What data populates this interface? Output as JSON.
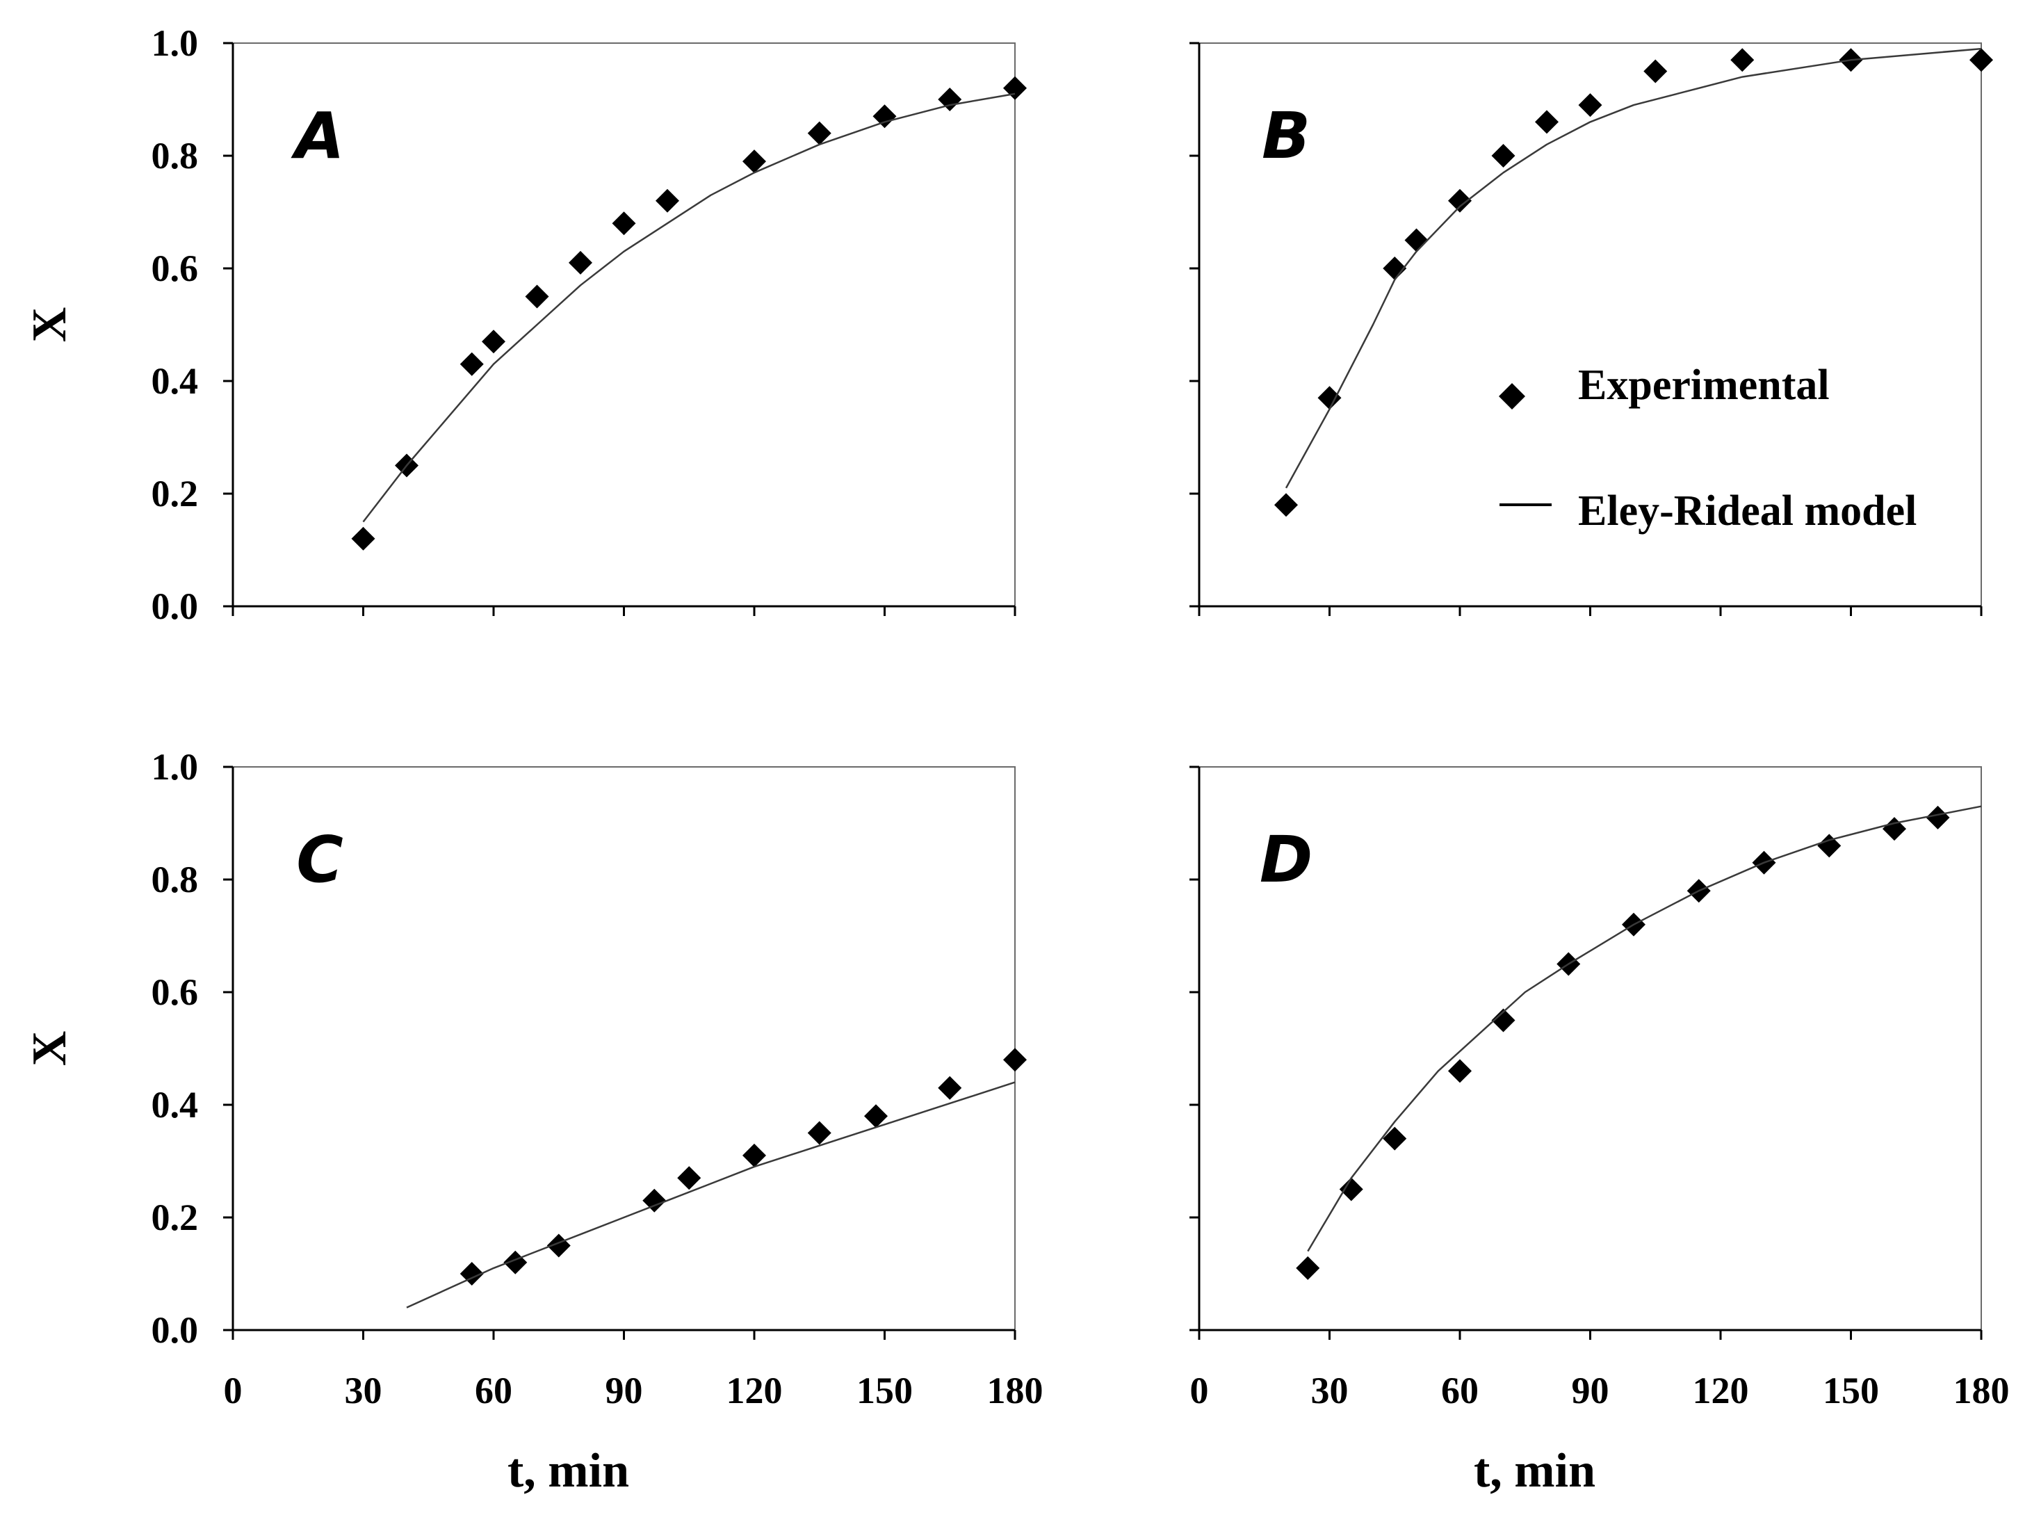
{
  "chart_data": [
    {
      "type": "scatter",
      "panel_label": "A",
      "xlabel": "",
      "ylabel": "X",
      "xlim": [
        0,
        180
      ],
      "ylim": [
        0,
        1.0
      ],
      "xticks": [
        "0",
        "30",
        "60",
        "90",
        "120",
        "150",
        "180"
      ],
      "yticks": [
        "0.0",
        "0.2",
        "0.4",
        "0.6",
        "0.8",
        "1.0"
      ],
      "show_xtick_labels": false,
      "show_ytick_labels": true,
      "series": [
        {
          "name": "Experimental",
          "kind": "markers",
          "x": [
            30,
            40,
            55,
            60,
            70,
            80,
            90,
            100,
            120,
            135,
            150,
            165,
            180
          ],
          "y": [
            0.12,
            0.25,
            0.43,
            0.47,
            0.55,
            0.61,
            0.68,
            0.72,
            0.79,
            0.84,
            0.87,
            0.9,
            0.92
          ]
        },
        {
          "name": "Eley-Rideal model",
          "kind": "line",
          "x": [
            30,
            40,
            50,
            60,
            70,
            80,
            90,
            100,
            110,
            120,
            135,
            150,
            165,
            180
          ],
          "y": [
            0.15,
            0.25,
            0.34,
            0.43,
            0.5,
            0.57,
            0.63,
            0.68,
            0.73,
            0.77,
            0.82,
            0.86,
            0.89,
            0.91
          ]
        }
      ]
    },
    {
      "type": "scatter",
      "panel_label": "B",
      "xlabel": "",
      "ylabel": "",
      "xlim": [
        0,
        180
      ],
      "ylim": [
        0,
        1.0
      ],
      "xticks": [
        "0",
        "30",
        "60",
        "90",
        "120",
        "150",
        "180"
      ],
      "yticks": [
        "0.0",
        "0.2",
        "0.4",
        "0.6",
        "0.8",
        "1.0"
      ],
      "show_xtick_labels": false,
      "show_ytick_labels": false,
      "legend": {
        "position": "center-right",
        "entries": [
          "Experimental",
          "Eley-Rideal model"
        ]
      },
      "series": [
        {
          "name": "Experimental",
          "kind": "markers",
          "x": [
            20,
            30,
            45,
            50,
            60,
            70,
            80,
            90,
            105,
            125,
            150,
            180
          ],
          "y": [
            0.18,
            0.37,
            0.6,
            0.65,
            0.72,
            0.8,
            0.86,
            0.89,
            0.95,
            0.97,
            0.97,
            0.97
          ]
        },
        {
          "name": "Eley-Rideal model",
          "kind": "line",
          "x": [
            20,
            30,
            40,
            45,
            50,
            60,
            70,
            80,
            90,
            100,
            110,
            125,
            150,
            180
          ],
          "y": [
            0.21,
            0.35,
            0.5,
            0.58,
            0.63,
            0.71,
            0.77,
            0.82,
            0.86,
            0.89,
            0.91,
            0.94,
            0.97,
            0.99
          ]
        }
      ]
    },
    {
      "type": "scatter",
      "panel_label": "C",
      "xlabel": "t, min",
      "ylabel": "X",
      "xlim": [
        0,
        180
      ],
      "ylim": [
        0,
        1.0
      ],
      "xticks": [
        "0",
        "30",
        "60",
        "90",
        "120",
        "150",
        "180"
      ],
      "yticks": [
        "0.0",
        "0.2",
        "0.4",
        "0.6",
        "0.8",
        "1.0"
      ],
      "show_xtick_labels": true,
      "show_ytick_labels": true,
      "series": [
        {
          "name": "Experimental",
          "kind": "markers",
          "x": [
            55,
            65,
            75,
            97,
            105,
            120,
            135,
            148,
            165,
            180
          ],
          "y": [
            0.1,
            0.12,
            0.15,
            0.23,
            0.27,
            0.31,
            0.35,
            0.38,
            0.43,
            0.48
          ]
        },
        {
          "name": "Eley-Rideal model",
          "kind": "line",
          "x": [
            40,
            60,
            80,
            100,
            120,
            140,
            160,
            180
          ],
          "y": [
            0.04,
            0.11,
            0.17,
            0.23,
            0.29,
            0.34,
            0.39,
            0.44
          ]
        }
      ]
    },
    {
      "type": "scatter",
      "panel_label": "D",
      "xlabel": "t, min",
      "ylabel": "",
      "xlim": [
        0,
        180
      ],
      "ylim": [
        0,
        1.0
      ],
      "xticks": [
        "0",
        "30",
        "60",
        "90",
        "120",
        "150",
        "180"
      ],
      "yticks": [
        "0.0",
        "0.2",
        "0.4",
        "0.6",
        "0.8",
        "1.0"
      ],
      "show_xtick_labels": true,
      "show_ytick_labels": false,
      "series": [
        {
          "name": "Experimental",
          "kind": "markers",
          "x": [
            25,
            35,
            45,
            60,
            70,
            85,
            100,
            115,
            130,
            145,
            160,
            170
          ],
          "y": [
            0.11,
            0.25,
            0.34,
            0.46,
            0.55,
            0.65,
            0.72,
            0.78,
            0.83,
            0.86,
            0.89,
            0.91
          ]
        },
        {
          "name": "Eley-Rideal model",
          "kind": "line",
          "x": [
            25,
            35,
            45,
            55,
            65,
            75,
            85,
            100,
            115,
            130,
            145,
            160,
            180
          ],
          "y": [
            0.14,
            0.27,
            0.37,
            0.46,
            0.53,
            0.6,
            0.65,
            0.72,
            0.78,
            0.83,
            0.87,
            0.9,
            0.93
          ]
        }
      ]
    }
  ]
}
